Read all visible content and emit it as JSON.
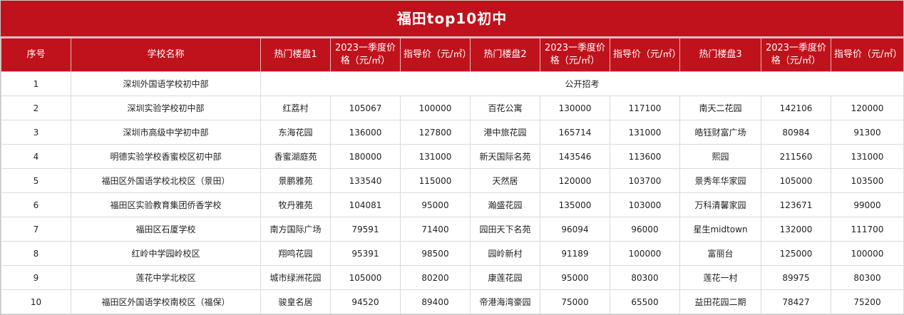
{
  "title": "福田top10初中",
  "headers": [
    "序号",
    "学校名称",
    "热门楼盘1",
    "2023一季度价格（元/㎡）",
    "指导价（元/㎡）",
    "热门楼盘2",
    "2023一季度价格（元/㎡）",
    "指导价（元/㎡）",
    "热门楼盘3",
    "2023一季度价格（元/㎡）",
    "指导价（元/㎡）"
  ],
  "row1": {
    "no": "1",
    "school": "深圳外国语学校初中部",
    "note": "公开招考"
  },
  "rows": [
    [
      "2",
      "深圳实验学校初中部",
      "红荔村",
      "105067",
      "100000",
      "百花公寓",
      "130000",
      "117100",
      "南天二花园",
      "142106",
      "120000"
    ],
    [
      "3",
      "深圳市高级中学初中部",
      "东海花园",
      "136000",
      "127800",
      "港中旅花园",
      "165714",
      "131000",
      "皓钰财富广场",
      "80984",
      "91300"
    ],
    [
      "4",
      "明德实验学校香蜜校区初中部",
      "香蜜湖庭苑",
      "180000",
      "131000",
      "新天国际名苑",
      "143546",
      "113600",
      "熙园",
      "211560",
      "131000"
    ],
    [
      "5",
      "福田区外国语学校北校区（景田）",
      "景鹏雅苑",
      "133540",
      "115000",
      "天然居",
      "120000",
      "103700",
      "景秀年华家园",
      "105000",
      "103500"
    ],
    [
      "6",
      "福田区实验教育集团侨香学校",
      "牧丹雅苑",
      "104081",
      "95000",
      "瀚盛花园",
      "135000",
      "103000",
      "万科清馨家园",
      "123671",
      "99000"
    ],
    [
      "7",
      "福田区石厦学校",
      "南方国际广场",
      "79591",
      "71400",
      "园田天下名苑",
      "96094",
      "96000",
      "星生midtown",
      "132000",
      "111700"
    ],
    [
      "8",
      "红岭中学园岭校区",
      "翔鸣花园",
      "95391",
      "98500",
      "园岭新村",
      "91189",
      "100000",
      "富丽台",
      "125000",
      "100000"
    ],
    [
      "9",
      "莲花中学北校区",
      "城市绿洲花园",
      "105000",
      "80200",
      "康莲花园",
      "95000",
      "80300",
      "莲花一村",
      "89975",
      "80300"
    ],
    [
      "10",
      "福田区外国语学校南校区（福保）",
      "骏皇名居",
      "94520",
      "89400",
      "帝港海湾豪园",
      "75000",
      "65500",
      "益田花园二期",
      "78427",
      "75200"
    ]
  ]
}
